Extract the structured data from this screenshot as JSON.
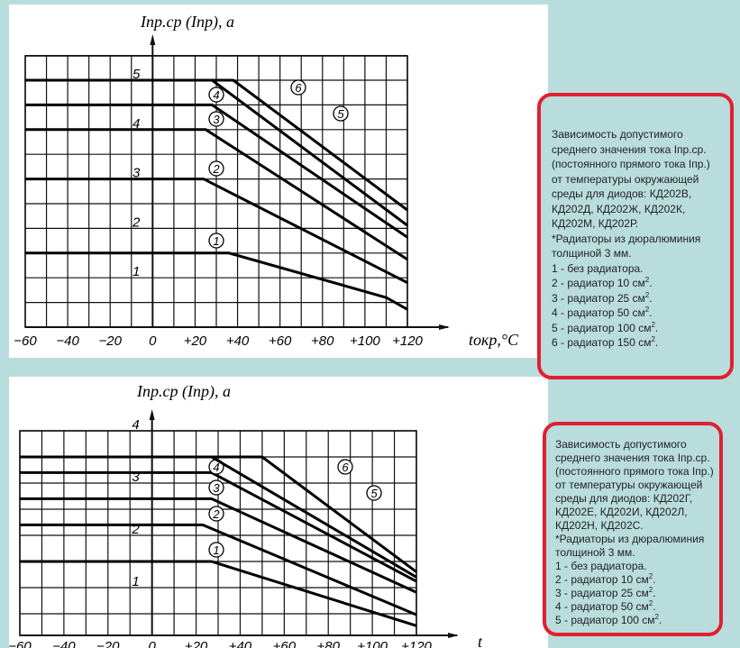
{
  "chart_data": [
    {
      "type": "line",
      "ylabel": "Iпр.ср (Iпр), а",
      "xlabel": "tокр,°C",
      "xlim": [
        -60,
        120
      ],
      "ylim": [
        0,
        5.5
      ],
      "grid": true,
      "xticks": [
        "-60",
        "-40",
        "-20",
        "0",
        "+20",
        "+40",
        "+60",
        "+80",
        "+100",
        "+120"
      ],
      "yticks": [
        "1",
        "2",
        "3",
        "4",
        "5"
      ],
      "series": [
        {
          "name": "1",
          "points": [
            [
              -60,
              1.5
            ],
            [
              36,
              1.5
            ],
            [
              110,
              0.6
            ],
            [
              120,
              0.36
            ]
          ]
        },
        {
          "name": "2",
          "points": [
            [
              -60,
              3.0
            ],
            [
              24,
              3.0
            ],
            [
              120,
              0.9
            ]
          ]
        },
        {
          "name": "3",
          "points": [
            [
              -60,
              4.0
            ],
            [
              25,
              4.0
            ],
            [
              120,
              1.37
            ]
          ]
        },
        {
          "name": "4",
          "points": [
            [
              -60,
              4.5
            ],
            [
              28,
              4.5
            ],
            [
              120,
              1.82
            ]
          ]
        },
        {
          "name": "5",
          "points": [
            [
              -60,
              5.0
            ],
            [
              28,
              5.0
            ],
            [
              120,
              2.06
            ]
          ]
        },
        {
          "name": "6",
          "points": [
            [
              -60,
              5.0
            ],
            [
              38,
              5.0
            ],
            [
              120,
              2.37
            ]
          ]
        }
      ]
    },
    {
      "type": "line",
      "ylabel": "Iпр.ср (Iпр), а",
      "xlabel": "t",
      "xlim": [
        -60,
        120
      ],
      "ylim": [
        0,
        4
      ],
      "grid": true,
      "xticks": [
        "-60",
        "-40",
        "-20",
        "0",
        "+20",
        "+40",
        "+60",
        "+80",
        "+100",
        "+120"
      ],
      "yticks": [
        "1",
        "2",
        "3",
        "4"
      ],
      "series": [
        {
          "name": "1",
          "points": [
            [
              -60,
              1.5
            ],
            [
              27,
              1.5
            ],
            [
              120,
              0.27
            ]
          ]
        },
        {
          "name": "2",
          "points": [
            [
              -60,
              2.2
            ],
            [
              23,
              2.2
            ],
            [
              120,
              0.48
            ]
          ]
        },
        {
          "name": "3",
          "points": [
            [
              -60,
              2.7
            ],
            [
              27,
              2.7
            ],
            [
              120,
              0.91
            ]
          ]
        },
        {
          "name": "4",
          "points": [
            [
              -60,
              3.2
            ],
            [
              27,
              3.2
            ],
            [
              120,
              1.12
            ]
          ]
        },
        {
          "name": "5",
          "points": [
            [
              -60,
              3.5
            ],
            [
              27,
              3.5
            ],
            [
              120,
              1.2
            ]
          ]
        },
        {
          "name": "6",
          "points": [
            [
              -60,
              3.5
            ],
            [
              50,
              3.5
            ],
            [
              120,
              1.3
            ]
          ]
        }
      ]
    }
  ],
  "notes": [
    {
      "lines": [
        "Зависимость допустимого среднего значения тока Iпр.ср. (постоянного прямого тока Iпр.) от температуры окружающей среды для диодов: КД202В, КД202Д, КД202Ж, КД202К, КД202М, КД202Р.",
        "*Радиаторы из дюралюминия толщиной 3 мм.",
        "1 - без радиатора.",
        "2 - радиатор 10 см2.",
        "3 - радиатор 25 см2.",
        "4 - радиатор 50 см2.",
        "5 - радиатор 100 см2.",
        "6 - радиатор 150 см2."
      ]
    },
    {
      "lines": [
        "Зависимость допустимого среднего значения тока Iпр.ср. (постоянного прямого тока Iпр.) от температуры окружающей среды для диодов: КД202Г, КД202Е, КД202И, КД202Л, КД202Н, КД202С.",
        "*Радиаторы из дюралюминия толщиной 3 мм.",
        "1 - без радиатора.",
        "2 - радиатор 10 см2.",
        "3 - радиатор 25 см2.",
        "4 - радиатор 50 см2.",
        "5 - радиатор 100 см2."
      ]
    }
  ],
  "colors": {
    "border": "#e02030",
    "background": "#b9dcdc"
  }
}
